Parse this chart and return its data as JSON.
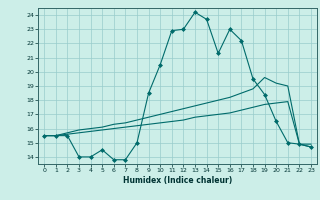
{
  "title": "",
  "xlabel": "Humidex (Indice chaleur)",
  "background_color": "#cceee8",
  "line_color": "#006b6b",
  "grid_color": "#99cccc",
  "xlim": [
    -0.5,
    23.5
  ],
  "ylim": [
    13.5,
    24.5
  ],
  "xticks": [
    0,
    1,
    2,
    3,
    4,
    5,
    6,
    7,
    8,
    9,
    10,
    11,
    12,
    13,
    14,
    15,
    16,
    17,
    18,
    19,
    20,
    21,
    22,
    23
  ],
  "yticks": [
    14,
    15,
    16,
    17,
    18,
    19,
    20,
    21,
    22,
    23,
    24
  ],
  "line1_x": [
    0,
    1,
    2,
    3,
    4,
    5,
    6,
    7,
    8,
    9,
    10,
    11,
    12,
    13,
    14,
    15,
    16,
    17,
    18,
    19,
    20,
    21,
    22,
    23
  ],
  "line1_y": [
    15.5,
    15.5,
    15.5,
    14.0,
    14.0,
    14.5,
    13.8,
    13.8,
    15.0,
    18.5,
    20.5,
    22.9,
    23.0,
    24.2,
    23.7,
    21.3,
    23.0,
    22.2,
    19.5,
    18.4,
    16.5,
    15.0,
    14.9,
    14.7
  ],
  "line2_x": [
    0,
    1,
    2,
    3,
    4,
    5,
    6,
    7,
    8,
    9,
    10,
    11,
    12,
    13,
    14,
    15,
    16,
    17,
    18,
    19,
    20,
    21,
    22,
    23
  ],
  "line2_y": [
    15.5,
    15.5,
    15.7,
    15.9,
    16.0,
    16.1,
    16.3,
    16.4,
    16.6,
    16.8,
    17.0,
    17.2,
    17.4,
    17.6,
    17.8,
    18.0,
    18.2,
    18.5,
    18.8,
    19.6,
    19.2,
    19.0,
    14.9,
    14.9
  ],
  "line3_x": [
    0,
    1,
    2,
    3,
    4,
    5,
    6,
    7,
    8,
    9,
    10,
    11,
    12,
    13,
    14,
    15,
    16,
    17,
    18,
    19,
    20,
    21,
    22,
    23
  ],
  "line3_y": [
    15.5,
    15.5,
    15.6,
    15.7,
    15.8,
    15.9,
    16.0,
    16.1,
    16.2,
    16.3,
    16.4,
    16.5,
    16.6,
    16.8,
    16.9,
    17.0,
    17.1,
    17.3,
    17.5,
    17.7,
    17.8,
    17.9,
    14.9,
    14.7
  ]
}
